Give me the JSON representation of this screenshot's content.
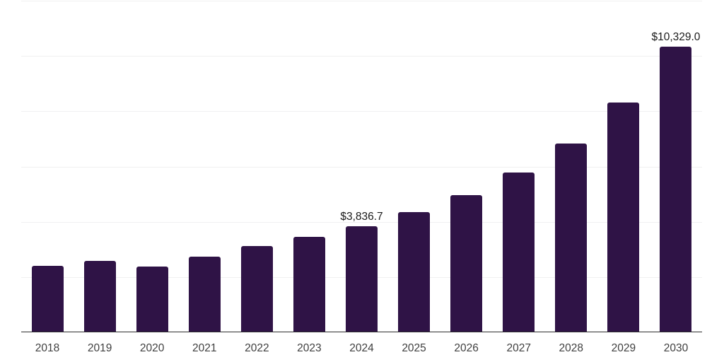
{
  "chart_data": {
    "type": "bar",
    "title": "",
    "xlabel": "",
    "ylabel": "",
    "categories": [
      "2018",
      "2019",
      "2020",
      "2021",
      "2022",
      "2023",
      "2024",
      "2025",
      "2026",
      "2027",
      "2028",
      "2029",
      "2030"
    ],
    "values": [
      2400,
      2580,
      2380,
      2740,
      3110,
      3450,
      3836.7,
      4350,
      4960,
      5780,
      6830,
      8310,
      10329.0
    ],
    "data_labels": [
      "",
      "",
      "",
      "",
      "",
      "",
      "$3,836.7",
      "",
      "",
      "",
      "",
      "",
      "$10,329.0"
    ],
    "ylim": [
      0,
      12000
    ],
    "grid_step": 2000,
    "grid": true,
    "legend": false,
    "layout_hints": {
      "gridlines_horizontal": true,
      "y_axis_labels_visible": false,
      "data_labels_on": [
        "2024",
        "2030"
      ]
    },
    "colors": {
      "bar": "#2F1346",
      "axis_line": "#2d2d2d",
      "gridline": "#f0f0f1",
      "tick_label": "#3f3f3f",
      "data_label": "#1a1a1a",
      "background": "#ffffff"
    }
  }
}
